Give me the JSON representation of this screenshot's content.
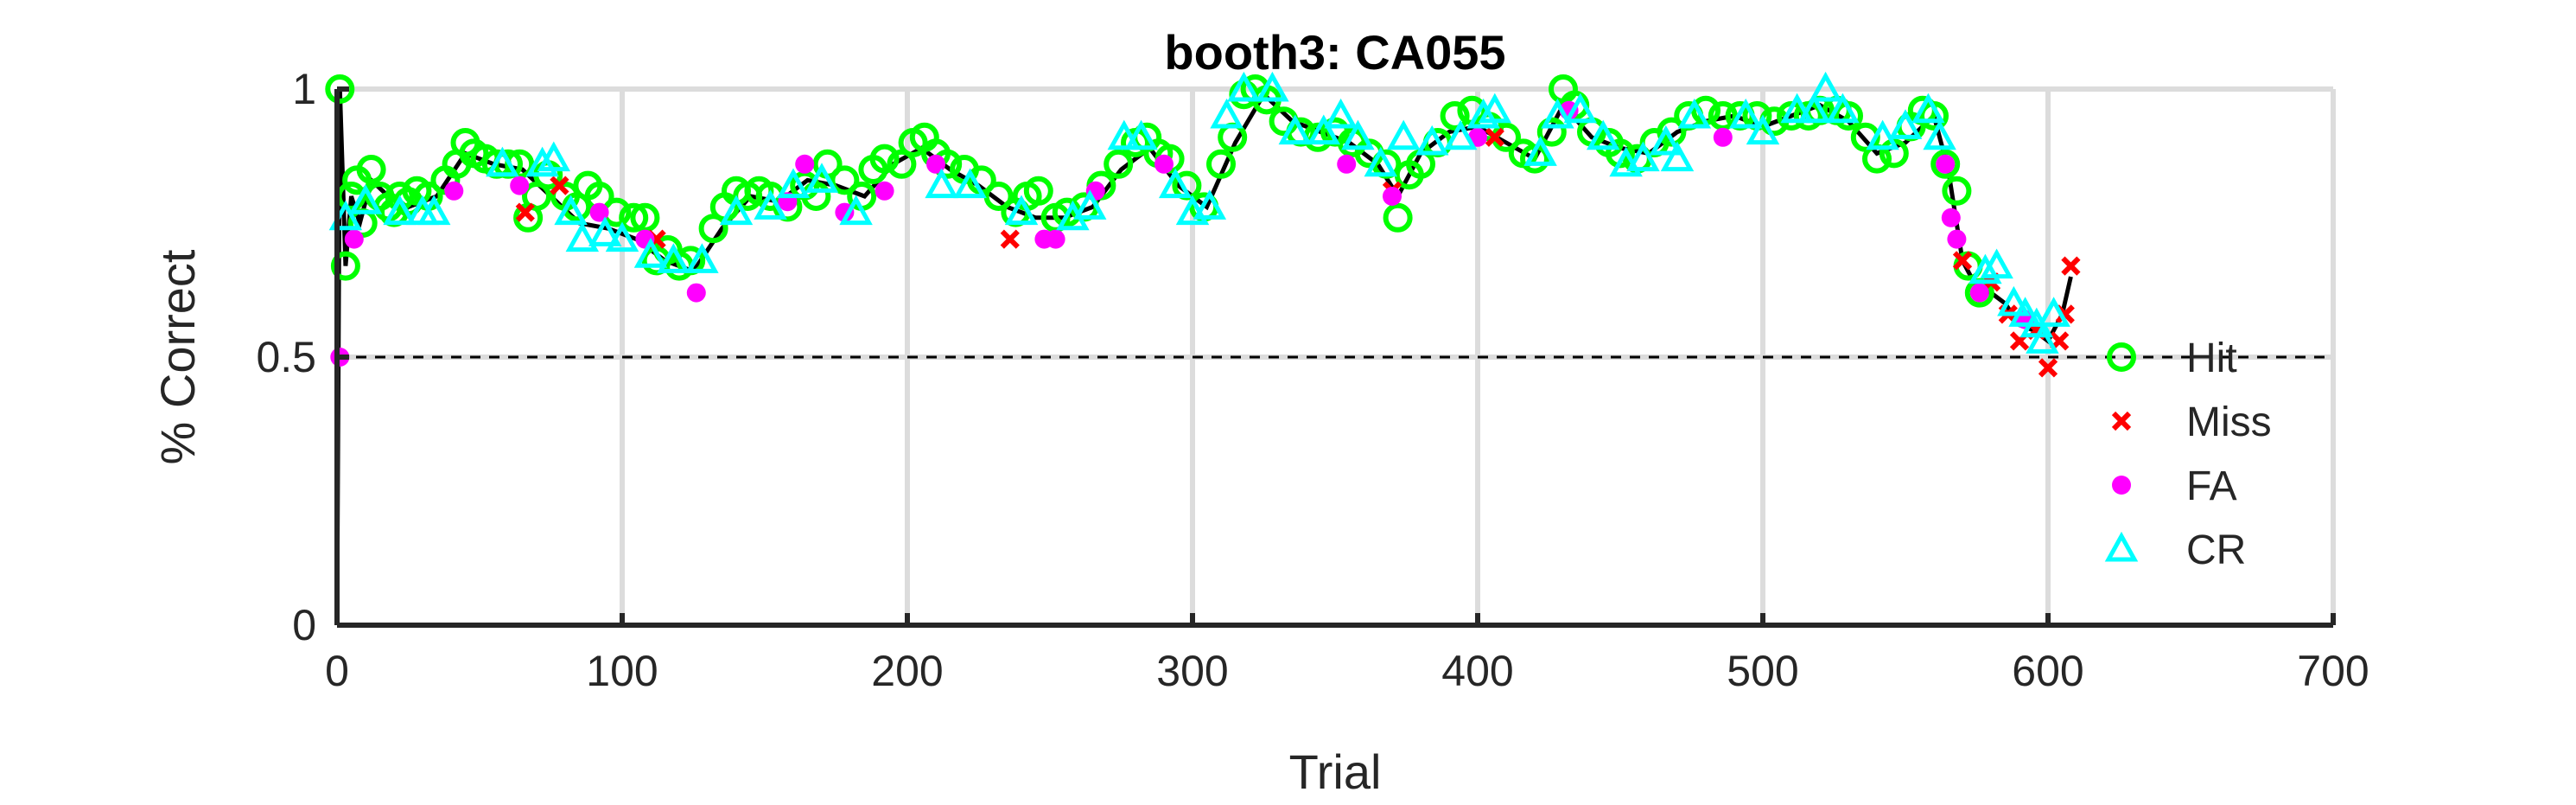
{
  "chart_data": {
    "type": "scatter",
    "title": "booth3: CA055",
    "xlabel": "Trial",
    "ylabel": "% Correct",
    "xlim": [
      0,
      700
    ],
    "ylim": [
      0,
      1
    ],
    "xticks": [
      0,
      100,
      200,
      300,
      400,
      500,
      600,
      700
    ],
    "yticks": [
      0,
      0.5,
      1
    ],
    "xtick_labels": [
      "0",
      "100",
      "200",
      "300",
      "400",
      "500",
      "600",
      "700"
    ],
    "ytick_labels": [
      "0",
      "0.5",
      "1"
    ],
    "grid": true,
    "legend_position": "right",
    "chance_level": 0.5,
    "colors": {
      "hit": "#00ff00",
      "miss": "#ff0000",
      "fa": "#ff00ff",
      "cr": "#00ffff",
      "line": "#000000"
    },
    "running_line": [
      [
        0,
        0
      ],
      [
        1,
        1.0
      ],
      [
        3,
        0.67
      ],
      [
        5,
        0.8
      ],
      [
        8,
        0.75
      ],
      [
        12,
        0.83
      ],
      [
        18,
        0.8
      ],
      [
        25,
        0.78
      ],
      [
        35,
        0.8
      ],
      [
        45,
        0.88
      ],
      [
        55,
        0.86
      ],
      [
        65,
        0.85
      ],
      [
        75,
        0.8
      ],
      [
        85,
        0.75
      ],
      [
        95,
        0.74
      ],
      [
        105,
        0.72
      ],
      [
        115,
        0.68
      ],
      [
        125,
        0.66
      ],
      [
        135,
        0.74
      ],
      [
        145,
        0.8
      ],
      [
        155,
        0.79
      ],
      [
        165,
        0.83
      ],
      [
        175,
        0.82
      ],
      [
        185,
        0.8
      ],
      [
        195,
        0.86
      ],
      [
        205,
        0.89
      ],
      [
        215,
        0.85
      ],
      [
        225,
        0.82
      ],
      [
        235,
        0.78
      ],
      [
        245,
        0.76
      ],
      [
        255,
        0.76
      ],
      [
        265,
        0.78
      ],
      [
        275,
        0.85
      ],
      [
        285,
        0.89
      ],
      [
        295,
        0.82
      ],
      [
        305,
        0.78
      ],
      [
        315,
        0.9
      ],
      [
        325,
        0.99
      ],
      [
        335,
        0.94
      ],
      [
        345,
        0.92
      ],
      [
        355,
        0.9
      ],
      [
        365,
        0.86
      ],
      [
        372,
        0.8
      ],
      [
        380,
        0.88
      ],
      [
        390,
        0.92
      ],
      [
        400,
        0.93
      ],
      [
        410,
        0.9
      ],
      [
        420,
        0.87
      ],
      [
        430,
        0.97
      ],
      [
        440,
        0.91
      ],
      [
        450,
        0.89
      ],
      [
        460,
        0.88
      ],
      [
        470,
        0.92
      ],
      [
        480,
        0.94
      ],
      [
        490,
        0.95
      ],
      [
        500,
        0.93
      ],
      [
        510,
        0.95
      ],
      [
        520,
        0.97
      ],
      [
        530,
        0.94
      ],
      [
        540,
        0.88
      ],
      [
        550,
        0.9
      ],
      [
        560,
        0.95
      ],
      [
        565,
        0.85
      ],
      [
        570,
        0.68
      ],
      [
        575,
        0.63
      ],
      [
        580,
        0.62
      ],
      [
        585,
        0.6
      ],
      [
        590,
        0.56
      ],
      [
        595,
        0.55
      ],
      [
        600,
        0.53
      ],
      [
        605,
        0.58
      ],
      [
        608,
        0.65
      ]
    ],
    "series": [
      {
        "name": "Hit",
        "marker": "circle",
        "points": [
          [
            1,
            1.0
          ],
          [
            3,
            0.67
          ],
          [
            5,
            0.8
          ],
          [
            7,
            0.83
          ],
          [
            9,
            0.75
          ],
          [
            12,
            0.85
          ],
          [
            15,
            0.8
          ],
          [
            18,
            0.78
          ],
          [
            20,
            0.77
          ],
          [
            22,
            0.8
          ],
          [
            25,
            0.79
          ],
          [
            28,
            0.81
          ],
          [
            32,
            0.8
          ],
          [
            38,
            0.83
          ],
          [
            42,
            0.86
          ],
          [
            45,
            0.9
          ],
          [
            48,
            0.88
          ],
          [
            52,
            0.87
          ],
          [
            56,
            0.86
          ],
          [
            60,
            0.86
          ],
          [
            64,
            0.86
          ],
          [
            67,
            0.76
          ],
          [
            70,
            0.8
          ],
          [
            74,
            0.84
          ],
          [
            80,
            0.8
          ],
          [
            84,
            0.78
          ],
          [
            88,
            0.82
          ],
          [
            92,
            0.8
          ],
          [
            98,
            0.77
          ],
          [
            104,
            0.76
          ],
          [
            108,
            0.76
          ],
          [
            112,
            0.68
          ],
          [
            116,
            0.7
          ],
          [
            120,
            0.67
          ],
          [
            124,
            0.68
          ],
          [
            132,
            0.74
          ],
          [
            136,
            0.78
          ],
          [
            140,
            0.81
          ],
          [
            144,
            0.8
          ],
          [
            148,
            0.81
          ],
          [
            152,
            0.8
          ],
          [
            158,
            0.78
          ],
          [
            164,
            0.82
          ],
          [
            168,
            0.8
          ],
          [
            172,
            0.86
          ],
          [
            178,
            0.83
          ],
          [
            184,
            0.8
          ],
          [
            188,
            0.85
          ],
          [
            192,
            0.87
          ],
          [
            198,
            0.86
          ],
          [
            202,
            0.9
          ],
          [
            206,
            0.91
          ],
          [
            210,
            0.88
          ],
          [
            214,
            0.86
          ],
          [
            220,
            0.85
          ],
          [
            226,
            0.83
          ],
          [
            232,
            0.8
          ],
          [
            238,
            0.77
          ],
          [
            242,
            0.8
          ],
          [
            246,
            0.81
          ],
          [
            252,
            0.76
          ],
          [
            256,
            0.77
          ],
          [
            262,
            0.78
          ],
          [
            268,
            0.82
          ],
          [
            274,
            0.86
          ],
          [
            280,
            0.9
          ],
          [
            284,
            0.91
          ],
          [
            288,
            0.88
          ],
          [
            292,
            0.87
          ],
          [
            298,
            0.82
          ],
          [
            304,
            0.78
          ],
          [
            310,
            0.86
          ],
          [
            314,
            0.91
          ],
          [
            318,
            0.99
          ],
          [
            322,
            1.0
          ],
          [
            326,
            0.98
          ],
          [
            332,
            0.94
          ],
          [
            338,
            0.92
          ],
          [
            344,
            0.91
          ],
          [
            350,
            0.92
          ],
          [
            356,
            0.9
          ],
          [
            362,
            0.88
          ],
          [
            368,
            0.86
          ],
          [
            372,
            0.76
          ],
          [
            376,
            0.84
          ],
          [
            380,
            0.86
          ],
          [
            386,
            0.9
          ],
          [
            392,
            0.95
          ],
          [
            398,
            0.96
          ],
          [
            404,
            0.93
          ],
          [
            410,
            0.91
          ],
          [
            416,
            0.88
          ],
          [
            420,
            0.87
          ],
          [
            426,
            0.92
          ],
          [
            430,
            1.0
          ],
          [
            434,
            0.97
          ],
          [
            440,
            0.92
          ],
          [
            446,
            0.9
          ],
          [
            450,
            0.88
          ],
          [
            456,
            0.87
          ],
          [
            462,
            0.9
          ],
          [
            468,
            0.92
          ],
          [
            474,
            0.95
          ],
          [
            480,
            0.96
          ],
          [
            486,
            0.95
          ],
          [
            492,
            0.95
          ],
          [
            498,
            0.95
          ],
          [
            504,
            0.94
          ],
          [
            510,
            0.95
          ],
          [
            516,
            0.95
          ],
          [
            520,
            0.96
          ],
          [
            526,
            0.96
          ],
          [
            530,
            0.95
          ],
          [
            536,
            0.91
          ],
          [
            540,
            0.87
          ],
          [
            546,
            0.88
          ],
          [
            552,
            0.93
          ],
          [
            556,
            0.96
          ],
          [
            560,
            0.95
          ],
          [
            564,
            0.86
          ],
          [
            568,
            0.81
          ],
          [
            572,
            0.67
          ],
          [
            576,
            0.62
          ]
        ]
      },
      {
        "name": "Miss",
        "marker": "x",
        "points": [
          [
            66,
            0.77
          ],
          [
            78,
            0.82
          ],
          [
            112,
            0.72
          ],
          [
            236,
            0.72
          ],
          [
            370,
            0.81
          ],
          [
            406,
            0.91
          ],
          [
            570,
            0.68
          ],
          [
            580,
            0.64
          ],
          [
            586,
            0.58
          ],
          [
            590,
            0.53
          ],
          [
            596,
            0.55
          ],
          [
            600,
            0.48
          ],
          [
            604,
            0.53
          ],
          [
            606,
            0.58
          ],
          [
            608,
            0.67
          ]
        ]
      },
      {
        "name": "FA",
        "marker": "dot",
        "points": [
          [
            1,
            0.5
          ],
          [
            6,
            0.72
          ],
          [
            41,
            0.81
          ],
          [
            64,
            0.82
          ],
          [
            92,
            0.77
          ],
          [
            108,
            0.72
          ],
          [
            126,
            0.62
          ],
          [
            158,
            0.79
          ],
          [
            164,
            0.86
          ],
          [
            178,
            0.77
          ],
          [
            192,
            0.81
          ],
          [
            210,
            0.86
          ],
          [
            248,
            0.72
          ],
          [
            252,
            0.72
          ],
          [
            266,
            0.81
          ],
          [
            290,
            0.86
          ],
          [
            354,
            0.86
          ],
          [
            370,
            0.8
          ],
          [
            400,
            0.91
          ],
          [
            432,
            0.96
          ],
          [
            486,
            0.91
          ],
          [
            564,
            0.86
          ],
          [
            566,
            0.76
          ],
          [
            568,
            0.72
          ],
          [
            576,
            0.62
          ],
          [
            592,
            0.57
          ]
        ]
      },
      {
        "name": "CR",
        "marker": "triangle",
        "points": [
          [
            3,
            0.76
          ],
          [
            10,
            0.79
          ],
          [
            22,
            0.77
          ],
          [
            30,
            0.77
          ],
          [
            34,
            0.77
          ],
          [
            58,
            0.86
          ],
          [
            72,
            0.86
          ],
          [
            76,
            0.87
          ],
          [
            82,
            0.77
          ],
          [
            86,
            0.72
          ],
          [
            94,
            0.73
          ],
          [
            100,
            0.72
          ],
          [
            110,
            0.69
          ],
          [
            118,
            0.68
          ],
          [
            128,
            0.68
          ],
          [
            140,
            0.77
          ],
          [
            152,
            0.78
          ],
          [
            160,
            0.82
          ],
          [
            170,
            0.83
          ],
          [
            182,
            0.77
          ],
          [
            212,
            0.82
          ],
          [
            222,
            0.82
          ],
          [
            240,
            0.77
          ],
          [
            258,
            0.76
          ],
          [
            264,
            0.78
          ],
          [
            276,
            0.91
          ],
          [
            282,
            0.91
          ],
          [
            294,
            0.82
          ],
          [
            300,
            0.77
          ],
          [
            306,
            0.78
          ],
          [
            312,
            0.95
          ],
          [
            318,
            1.0
          ],
          [
            328,
            1.0
          ],
          [
            336,
            0.92
          ],
          [
            346,
            0.92
          ],
          [
            352,
            0.95
          ],
          [
            358,
            0.91
          ],
          [
            366,
            0.86
          ],
          [
            374,
            0.91
          ],
          [
            384,
            0.9
          ],
          [
            394,
            0.91
          ],
          [
            402,
            0.95
          ],
          [
            406,
            0.96
          ],
          [
            422,
            0.88
          ],
          [
            428,
            0.95
          ],
          [
            436,
            0.96
          ],
          [
            444,
            0.91
          ],
          [
            452,
            0.86
          ],
          [
            458,
            0.87
          ],
          [
            466,
            0.9
          ],
          [
            470,
            0.87
          ],
          [
            476,
            0.95
          ],
          [
            494,
            0.95
          ],
          [
            500,
            0.92
          ],
          [
            512,
            0.96
          ],
          [
            518,
            0.96
          ],
          [
            522,
            1.0
          ],
          [
            528,
            0.96
          ],
          [
            542,
            0.91
          ],
          [
            550,
            0.93
          ],
          [
            558,
            0.96
          ],
          [
            562,
            0.91
          ],
          [
            578,
            0.66
          ],
          [
            582,
            0.67
          ],
          [
            588,
            0.6
          ],
          [
            592,
            0.58
          ],
          [
            596,
            0.56
          ],
          [
            598,
            0.53
          ],
          [
            602,
            0.58
          ]
        ]
      }
    ]
  }
}
